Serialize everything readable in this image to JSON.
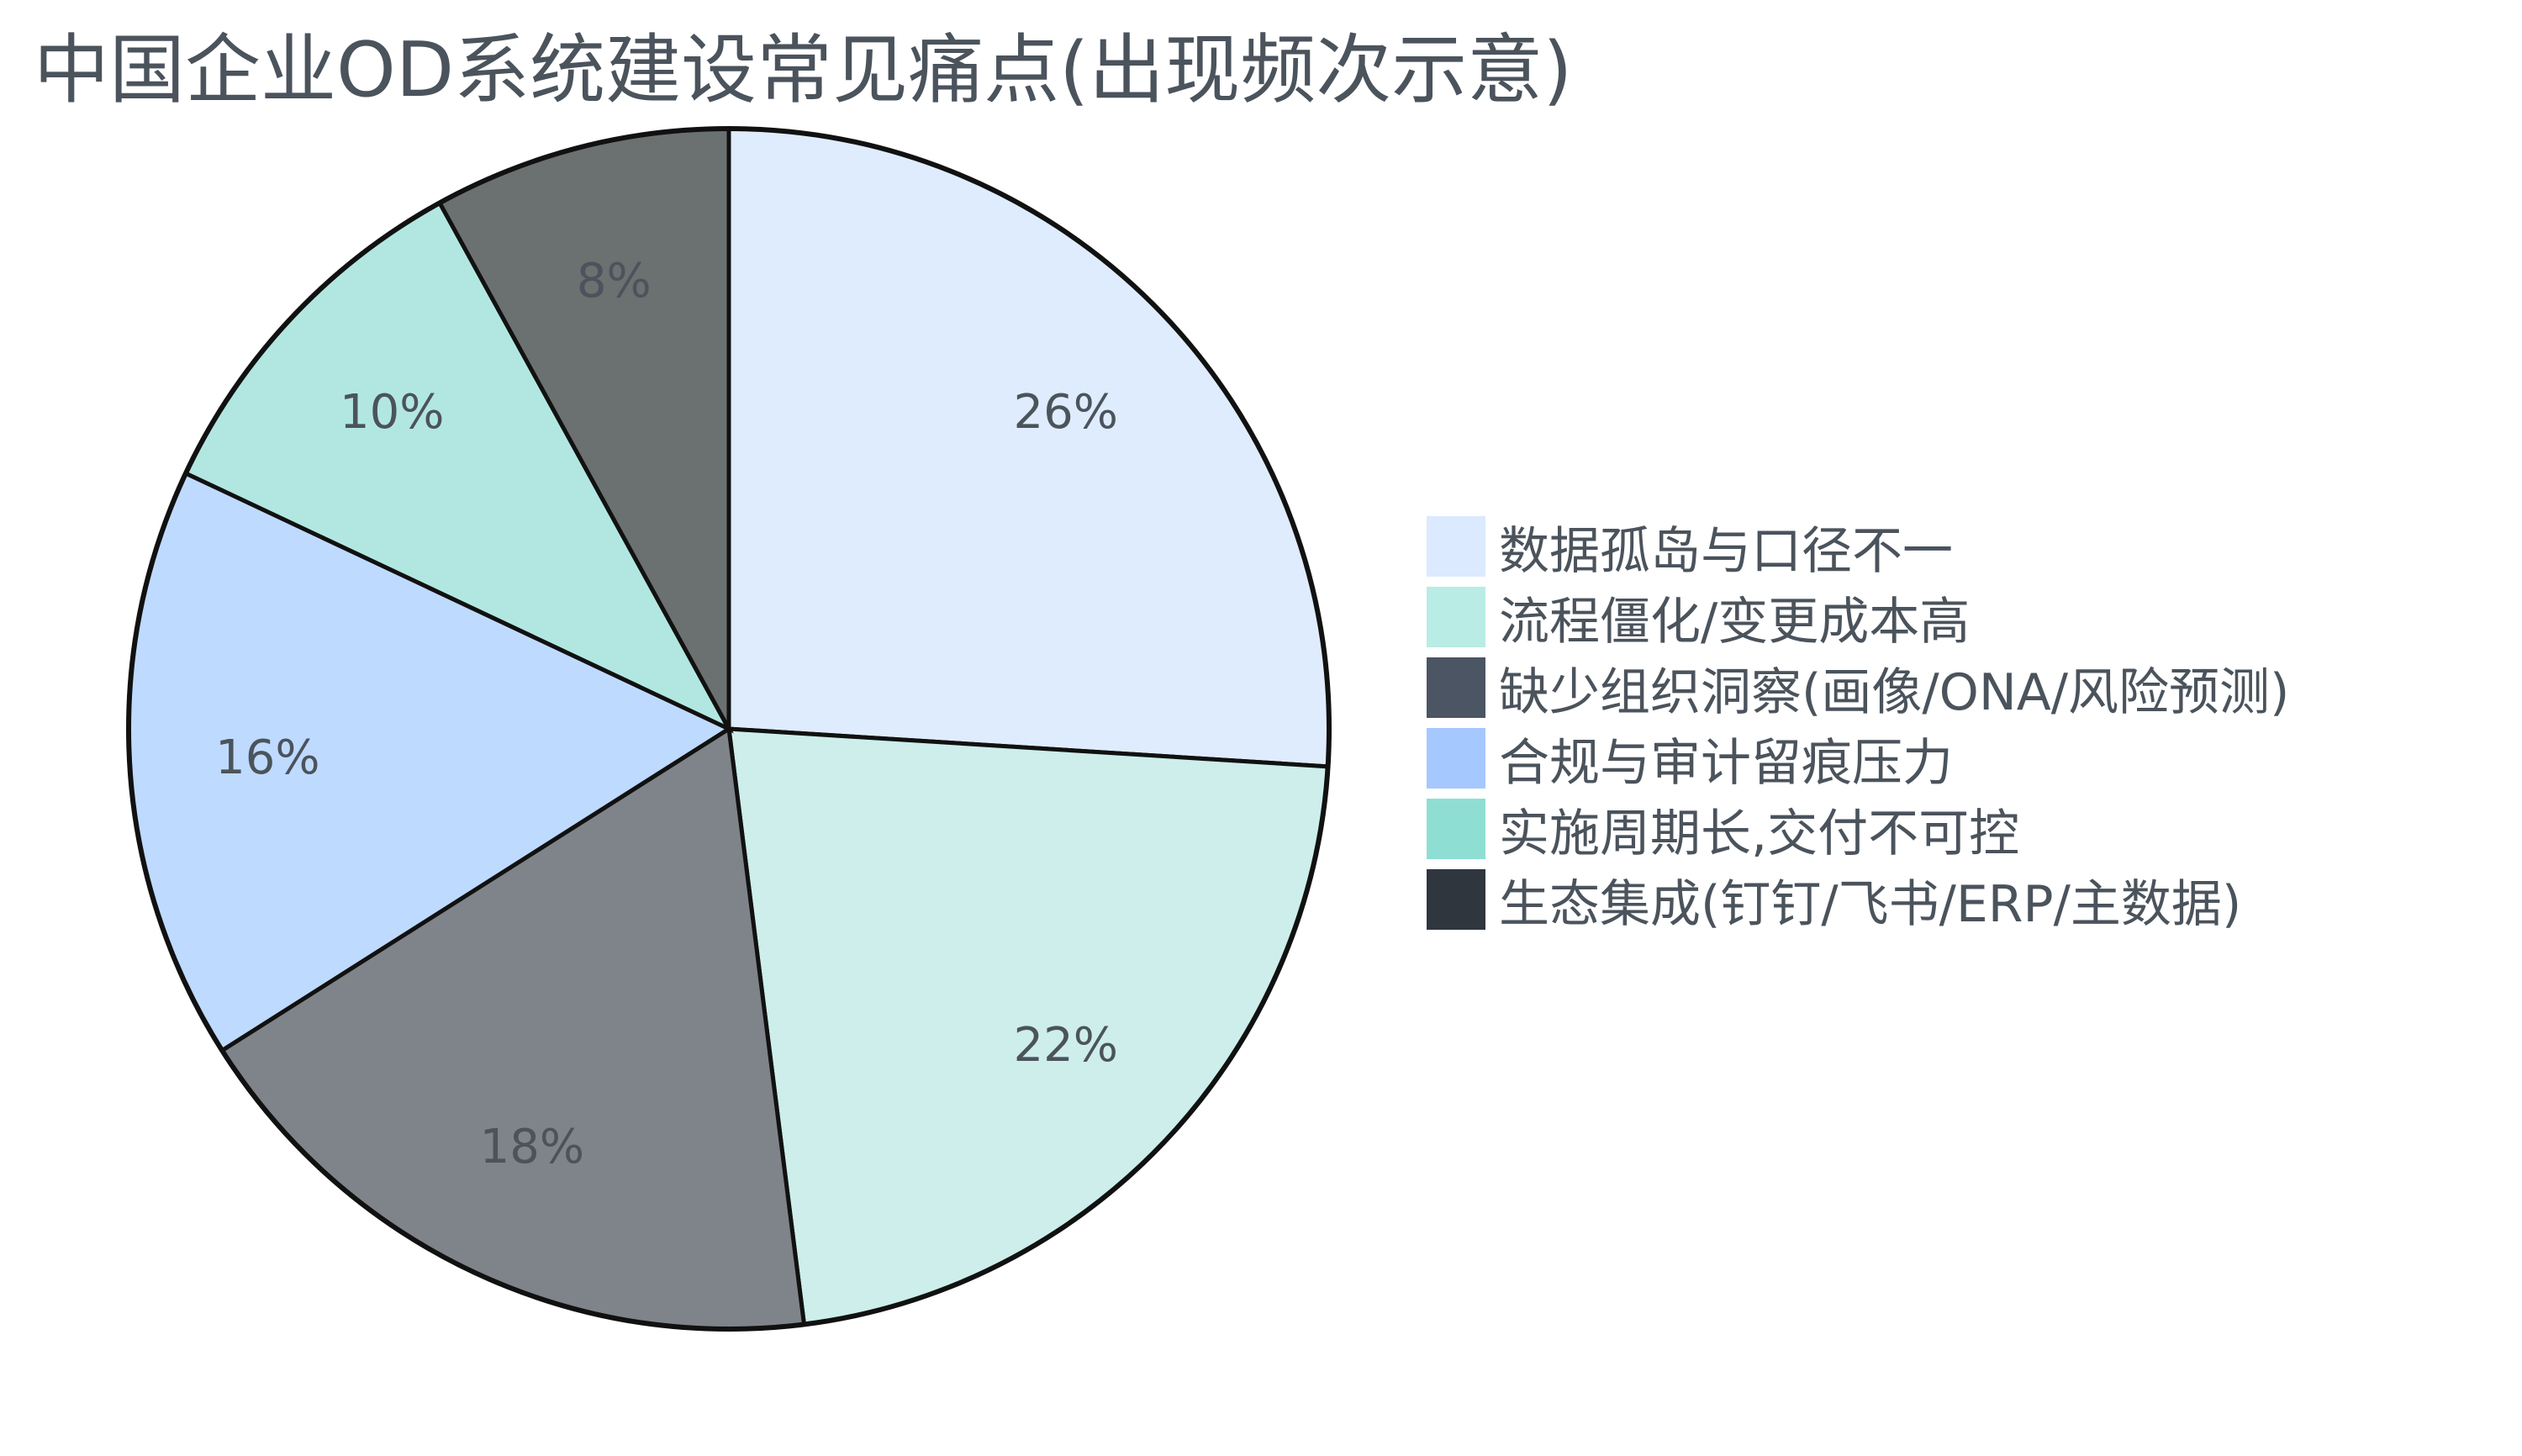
{
  "chart_data": {
    "type": "pie",
    "title": "中国企业OD系统建设常见痛点(出现频次示意)",
    "categories": [
      "数据孤岛与口径不一",
      "流程僵化/变更成本高",
      "缺少组织洞察(画像/ONA/风险预测)",
      "合规与审计留痕压力",
      "实施周期长,交付不可控",
      "生态集成(钉钉/飞书/ERP/主数据)"
    ],
    "values": [
      26,
      22,
      18,
      16,
      10,
      8
    ],
    "labels": [
      "26%",
      "22%",
      "18%",
      "16%",
      "10%",
      "8%"
    ],
    "legend_colors": [
      "#dbeafe",
      "#b9ece4",
      "#4b5563",
      "#a5c8ff",
      "#8fded4",
      "#30363d"
    ],
    "slice_colors": [
      "#dfecfd",
      "#cdeeeb",
      "#7f848a",
      "#bfdaff",
      "#b2e7e1",
      "#6b7070"
    ],
    "legend_position": "right"
  }
}
